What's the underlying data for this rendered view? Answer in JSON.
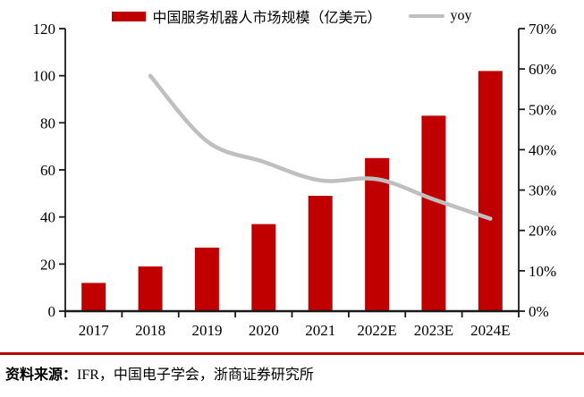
{
  "legend": {
    "bar_label": "中国服务机器人市场规模（亿美元）",
    "line_label": "yoy"
  },
  "footer": {
    "source_label": "资料来源：",
    "source_text": "IFR，中国电子学会，浙商证券研究所"
  },
  "colors": {
    "bar": "#C00000",
    "line": "#BFBFBF",
    "axis": "#1a1a1a",
    "divider": "#B00000"
  },
  "chart_data": {
    "type": "bar",
    "subtype": "bar+line-combo",
    "categories": [
      "2017",
      "2018",
      "2019",
      "2020",
      "2021",
      "2022E",
      "2023E",
      "2024E"
    ],
    "series": [
      {
        "name": "中国服务机器人市场规模（亿美元）",
        "type": "bar",
        "axis": "left",
        "values": [
          12,
          19,
          27,
          37,
          49,
          65,
          83,
          102
        ]
      },
      {
        "name": "yoy",
        "type": "line",
        "axis": "right",
        "values": [
          null,
          58.3,
          42.1,
          37.0,
          32.4,
          32.7,
          27.7,
          22.9
        ],
        "unit": "%"
      }
    ],
    "left_axis": {
      "min": 0,
      "max": 120,
      "step": 20,
      "tick_labels": [
        "0",
        "20",
        "40",
        "60",
        "80",
        "100",
        "120"
      ]
    },
    "right_axis": {
      "min": 0,
      "max": 70,
      "step": 10,
      "tick_labels": [
        "0%",
        "10%",
        "20%",
        "30%",
        "40%",
        "50%",
        "60%",
        "70%"
      ]
    },
    "grid": false,
    "legend_position": "top-center",
    "title": ""
  }
}
